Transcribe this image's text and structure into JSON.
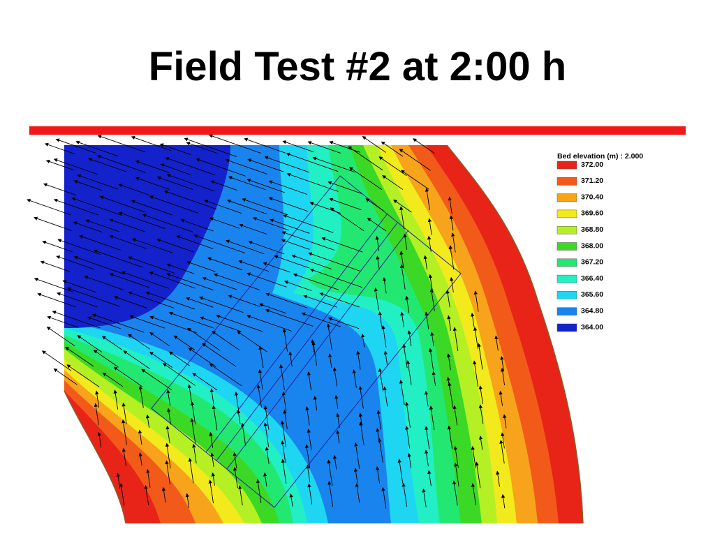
{
  "title": "Field Test #2 at 2:00 h",
  "legend": {
    "title": "Bed elevation (m) : 2.000",
    "items": [
      {
        "label": "372.00",
        "color": "#e82418"
      },
      {
        "label": "371.20",
        "color": "#f25a1a"
      },
      {
        "label": "370.40",
        "color": "#f7a31c"
      },
      {
        "label": "369.60",
        "color": "#f2ea1c"
      },
      {
        "label": "368.80",
        "color": "#b4f024"
      },
      {
        "label": "368.00",
        "color": "#3cd826"
      },
      {
        "label": "367.20",
        "color": "#22e872"
      },
      {
        "label": "366.40",
        "color": "#22f0c4"
      },
      {
        "label": "365.60",
        "color": "#1ed6f2"
      },
      {
        "label": "364.80",
        "color": "#1a84ee"
      },
      {
        "label": "364.00",
        "color": "#1422cc"
      }
    ]
  }
}
